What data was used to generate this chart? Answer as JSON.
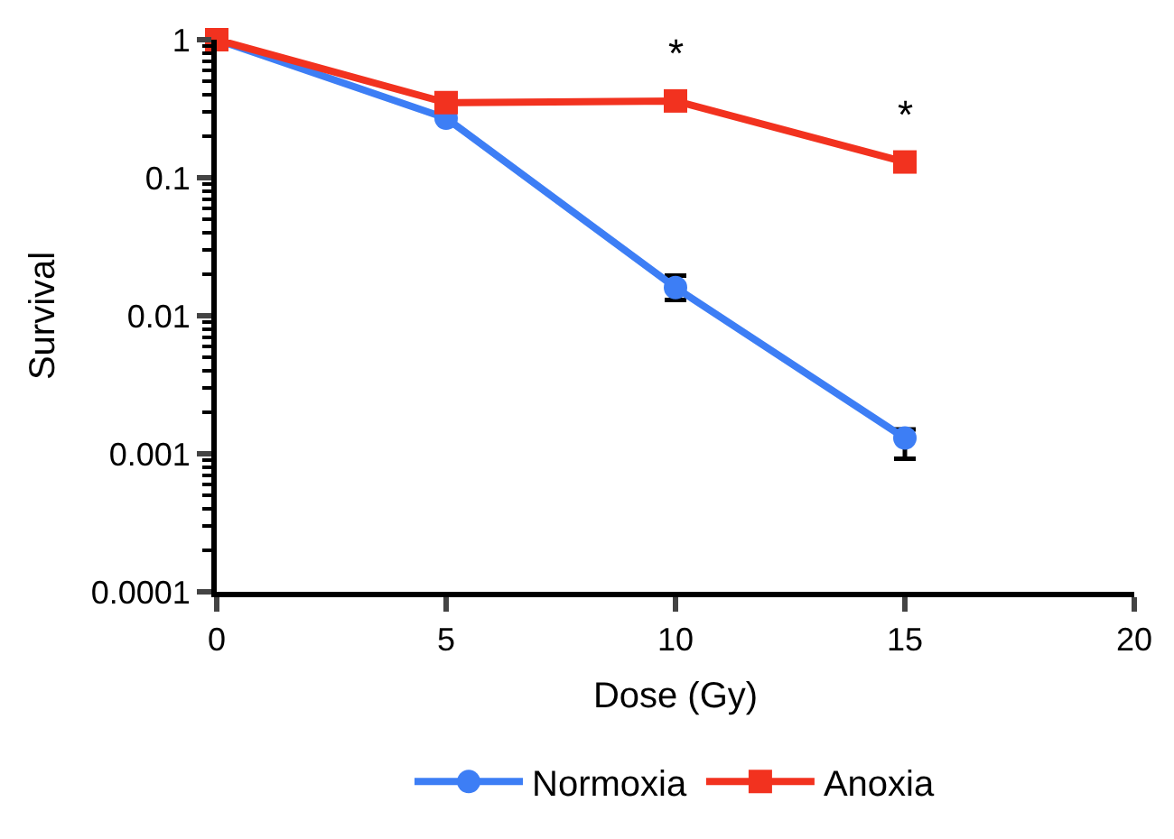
{
  "chart_data": {
    "type": "line",
    "xlabel": "Dose (Gy)",
    "ylabel": "Survival",
    "x": [
      0,
      5,
      10,
      15
    ],
    "series": [
      {
        "name": "Normoxia",
        "color": "#3d7ef5",
        "values": [
          1,
          0.27,
          0.016,
          0.0013
        ],
        "marker": "circle",
        "errors": [
          null,
          null,
          [
            0.013,
            0.0195
          ],
          [
            0.00092,
            0.0015
          ]
        ]
      },
      {
        "name": "Anoxia",
        "color": "#f2321f",
        "values": [
          1,
          0.35,
          0.36,
          0.13
        ],
        "marker": "square"
      }
    ],
    "log": "y",
    "xlim": [
      0,
      20
    ],
    "xticks": [
      0,
      5,
      10,
      15,
      20
    ],
    "ylim": [
      0.0001,
      1
    ],
    "yticks": [
      0.0001,
      0.001,
      0.01,
      0.1,
      1
    ],
    "annotations": [
      {
        "text": "*",
        "x": 10,
        "y": 0.36
      },
      {
        "text": "*",
        "x": 15,
        "y": 0.13
      }
    ],
    "legend": "bottom",
    "line_style": "solid"
  }
}
